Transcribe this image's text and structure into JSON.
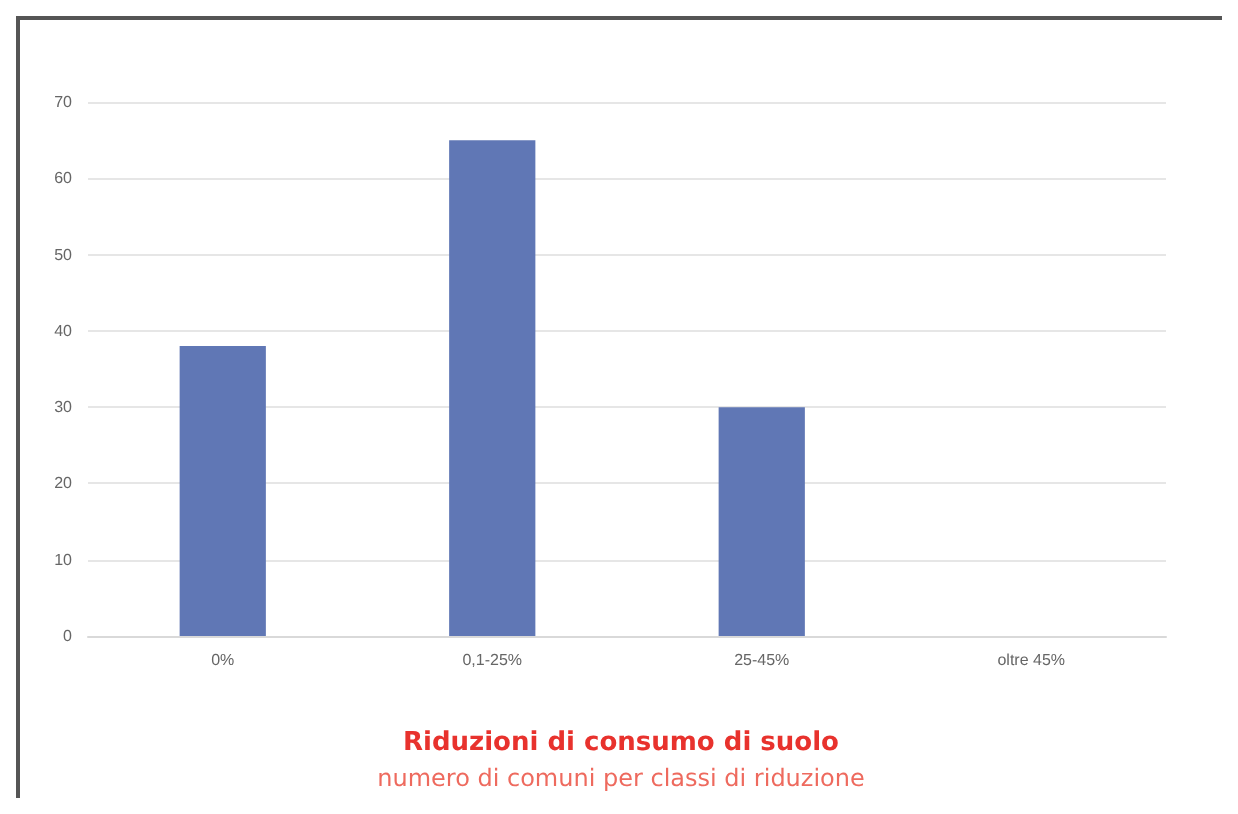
{
  "chart_data": {
    "type": "bar",
    "title": "Riduzioni di consumo di suolo",
    "subtitle": "numero di comuni per classi di riduzione",
    "categories": [
      "0%",
      "0,1-25%",
      "25-45%",
      "oltre 45%"
    ],
    "values": [
      38,
      65,
      30,
      0
    ],
    "color": "#6077b5",
    "ylim": [
      0,
      70
    ],
    "yticks": [
      0,
      10,
      20,
      30,
      40,
      50,
      60,
      70
    ],
    "grid": "y"
  }
}
